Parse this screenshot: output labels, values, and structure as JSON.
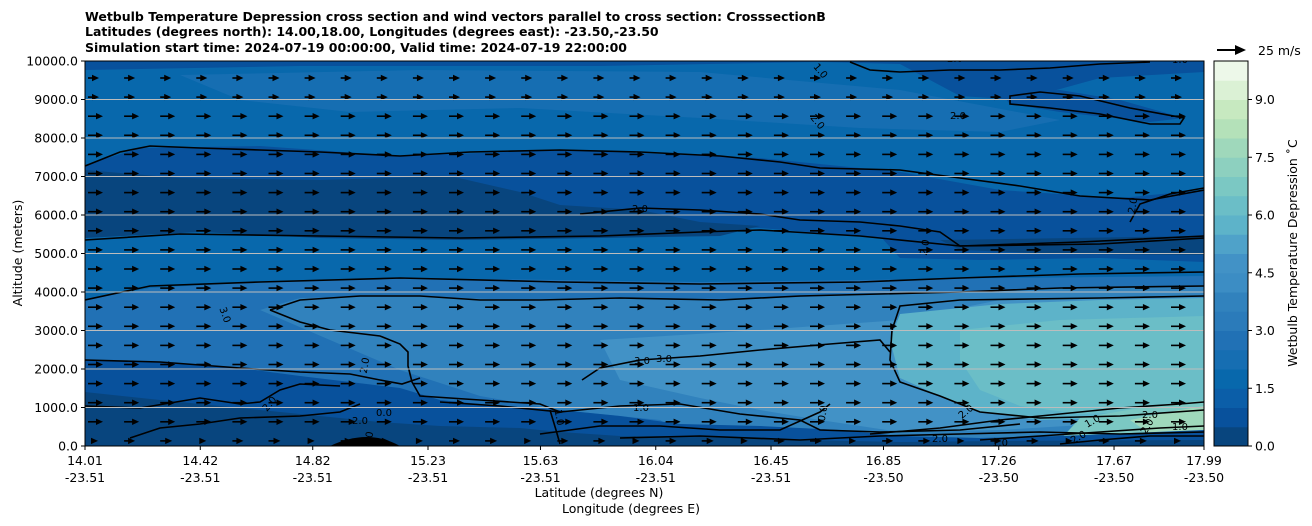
{
  "chart_data": {
    "type": "contour",
    "title_lines": [
      "Wetbulb Temperature Depression cross section and wind vectors parallel to cross section: CrosssectionB",
      "Latitudes (degrees north): 14.00,18.00, Longitudes (degrees east): -23.50,-23.50",
      "Simulation start time: 2024-07-19 00:00:00, Valid time: 2024-07-19 22:00:00"
    ],
    "xlabel_lat": "Latitude (degrees N)",
    "xlabel_lon": "Longitude (degrees E)",
    "ylabel": "Altitude (meters)",
    "x_ticks": [
      {
        "lat": "14.01",
        "lon": "-23.51"
      },
      {
        "lat": "14.42",
        "lon": "-23.51"
      },
      {
        "lat": "14.82",
        "lon": "-23.51"
      },
      {
        "lat": "15.23",
        "lon": "-23.51"
      },
      {
        "lat": "15.63",
        "lon": "-23.51"
      },
      {
        "lat": "16.04",
        "lon": "-23.51"
      },
      {
        "lat": "16.45",
        "lon": "-23.51"
      },
      {
        "lat": "16.85",
        "lon": "-23.50"
      },
      {
        "lat": "17.26",
        "lon": "-23.50"
      },
      {
        "lat": "17.67",
        "lon": "-23.50"
      },
      {
        "lat": "17.99",
        "lon": "-23.50"
      }
    ],
    "x_range": [
      14.01,
      17.99
    ],
    "y_range": [
      0,
      10000
    ],
    "y_ticks": [
      "0.0",
      "1000.0",
      "2000.0",
      "3000.0",
      "4000.0",
      "5000.0",
      "6000.0",
      "7000.0",
      "8000.0",
      "9000.0",
      "10000.0"
    ],
    "y_tick_values": [
      0,
      1000,
      2000,
      3000,
      4000,
      5000,
      6000,
      7000,
      8000,
      9000,
      10000
    ],
    "grid": "horizontal",
    "colorbar": {
      "label": "Wetbulb Temperature Depression ˚C",
      "min": 0,
      "max": 10,
      "levels": 20,
      "tick_labels": [
        "0.0",
        "1.5",
        "3.0",
        "4.5",
        "6.0",
        "7.5",
        "9.0"
      ],
      "tick_values": [
        0,
        1.5,
        3,
        4.5,
        6,
        7.5,
        9
      ],
      "colors": [
        "#08457e",
        "#08519c",
        "#0b5ea8",
        "#0868ac",
        "#166eb2",
        "#2171b5",
        "#2b7bba",
        "#3182bd",
        "#3c8dc4",
        "#4292c6",
        "#4fa2c9",
        "#5db3c9",
        "#6bbec7",
        "#7bc8c3",
        "#8dd0bf",
        "#9fd8bb",
        "#b4e1b9",
        "#c7e9c0",
        "#dbf1d5",
        "#edf8e9"
      ]
    },
    "wind_key": {
      "label": "25 m/s",
      "speed": 25
    },
    "contour_labels": [
      "1.0",
      "1.0",
      "1.0",
      "2.0",
      "2.0",
      "2.0",
      "2.0",
      "2.0",
      "2.0",
      "3.0",
      "3.0",
      "3.0",
      "2.0",
      "2.0",
      "1.0",
      "1.0",
      "2.0",
      "0.0",
      "0.0",
      "0.0",
      "2.0",
      "2.0",
      "1.0",
      "2.0",
      "1.0",
      "2.0",
      "3.0",
      "1.0",
      "1.0",
      "2.0"
    ]
  }
}
